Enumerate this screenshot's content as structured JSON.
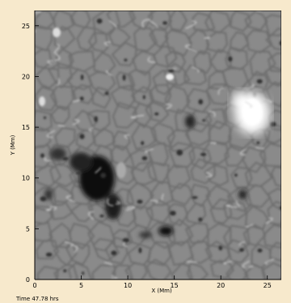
{
  "figure": {
    "x_axis_title": "X (Mm)",
    "y_axis_title": "Y (Mm)",
    "x_ticks": [
      "0",
      "5",
      "10",
      "15",
      "20",
      "25"
    ],
    "y_ticks": [
      "0",
      "5",
      "10",
      "15",
      "20",
      "25"
    ],
    "caption": "Time 47.78 hrs",
    "colors": {
      "page_background": "#f7e9cc",
      "field_background": "#8a8a8a",
      "positive_polarity": "#ffffff",
      "negative_polarity": "#000000"
    }
  }
}
